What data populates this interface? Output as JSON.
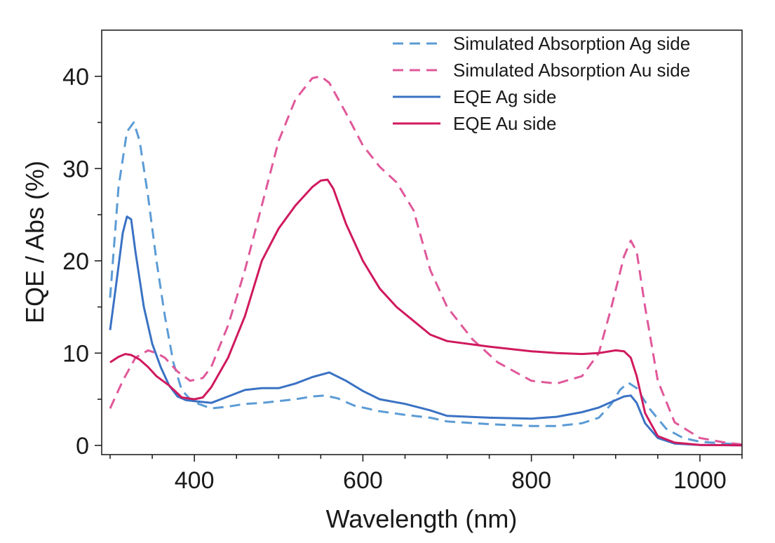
{
  "chart_data": {
    "type": "line",
    "title": "",
    "xlabel": "Wavelength (nm)",
    "ylabel": "EQE / Abs (%)",
    "xlim": [
      290,
      1050
    ],
    "ylim": [
      -1,
      45
    ],
    "xticks": [
      400,
      600,
      800,
      1000
    ],
    "yticks": [
      0,
      10,
      20,
      30,
      40
    ],
    "grid": false,
    "legend_position": "top-right",
    "series": [
      {
        "name": "Simulated Absorption Ag side",
        "color": "#5b9bd5",
        "dash": "dashed",
        "x": [
          300,
          310,
          320,
          328,
          335,
          345,
          355,
          365,
          375,
          385,
          395,
          405,
          420,
          440,
          460,
          480,
          500,
          520,
          540,
          555,
          570,
          590,
          620,
          650,
          680,
          700,
          750,
          800,
          830,
          860,
          880,
          895,
          905,
          915,
          925,
          940,
          960,
          980,
          1000,
          1030,
          1050
        ],
        "y": [
          16,
          28,
          34,
          35,
          33,
          27,
          20,
          14,
          9,
          6,
          5,
          4.5,
          4,
          4.2,
          4.5,
          4.6,
          4.8,
          5,
          5.3,
          5.4,
          5.1,
          4.3,
          3.7,
          3.3,
          3,
          2.6,
          2.3,
          2.1,
          2.1,
          2.4,
          3,
          4.5,
          6,
          6.8,
          6.2,
          4,
          1.8,
          0.8,
          0.4,
          0.2,
          0.1
        ]
      },
      {
        "name": "Simulated Absorption Au side",
        "color": "#e0589a",
        "dash": "dashed",
        "x": [
          300,
          315,
          330,
          345,
          355,
          365,
          380,
          395,
          410,
          420,
          440,
          460,
          480,
          500,
          520,
          540,
          550,
          560,
          580,
          600,
          620,
          640,
          660,
          680,
          700,
          730,
          760,
          800,
          830,
          860,
          880,
          895,
          910,
          918,
          925,
          935,
          950,
          970,
          1000,
          1030,
          1050
        ],
        "y": [
          4,
          7,
          9.5,
          10.3,
          10,
          9.5,
          8,
          7,
          7.3,
          8.5,
          13,
          19,
          26,
          33,
          37.5,
          39.8,
          40,
          39.3,
          36,
          32.5,
          30.2,
          28.5,
          25.5,
          19,
          15,
          11.5,
          9,
          7,
          6.7,
          7.5,
          10,
          15,
          20.5,
          22.2,
          21,
          15,
          7,
          2.5,
          0.8,
          0.3,
          0.1
        ]
      },
      {
        "name": "EQE Ag side",
        "color": "#3a72c4",
        "dash": "solid",
        "x": [
          300,
          308,
          315,
          320,
          325,
          330,
          340,
          350,
          360,
          370,
          380,
          390,
          400,
          410,
          420,
          440,
          460,
          480,
          500,
          520,
          540,
          560,
          580,
          600,
          620,
          650,
          680,
          700,
          750,
          800,
          830,
          860,
          880,
          900,
          910,
          918,
          925,
          935,
          950,
          970,
          1000,
          1050
        ],
        "y": [
          12.5,
          18,
          23,
          24.8,
          24.5,
          21,
          15,
          11,
          8.5,
          6.5,
          5.3,
          4.9,
          4.8,
          4.7,
          4.6,
          5.3,
          6,
          6.2,
          6.2,
          6.7,
          7.4,
          7.9,
          7,
          5.9,
          5,
          4.5,
          3.8,
          3.2,
          3,
          2.9,
          3.1,
          3.6,
          4.1,
          4.9,
          5.3,
          5.4,
          4.6,
          2.4,
          0.8,
          0.2,
          0.05,
          0
        ]
      },
      {
        "name": "EQE Au side",
        "color": "#d0195e",
        "dash": "solid",
        "x": [
          300,
          310,
          318,
          325,
          335,
          345,
          355,
          370,
          385,
          400,
          410,
          420,
          440,
          460,
          480,
          500,
          520,
          540,
          550,
          558,
          565,
          580,
          600,
          620,
          640,
          660,
          680,
          700,
          750,
          800,
          830,
          860,
          880,
          900,
          910,
          918,
          925,
          935,
          950,
          970,
          1000,
          1050
        ],
        "y": [
          9,
          9.6,
          9.9,
          9.8,
          9.3,
          8.5,
          7.5,
          6.5,
          5.2,
          5,
          5.2,
          6.3,
          9.5,
          14,
          20,
          23.5,
          26,
          28,
          28.7,
          28.8,
          27.8,
          24,
          20,
          17,
          15,
          13.5,
          12,
          11.3,
          10.7,
          10.2,
          10,
          9.9,
          10,
          10.3,
          10.2,
          9.5,
          7.5,
          3.5,
          1,
          0.3,
          0.05,
          0
        ]
      }
    ]
  }
}
